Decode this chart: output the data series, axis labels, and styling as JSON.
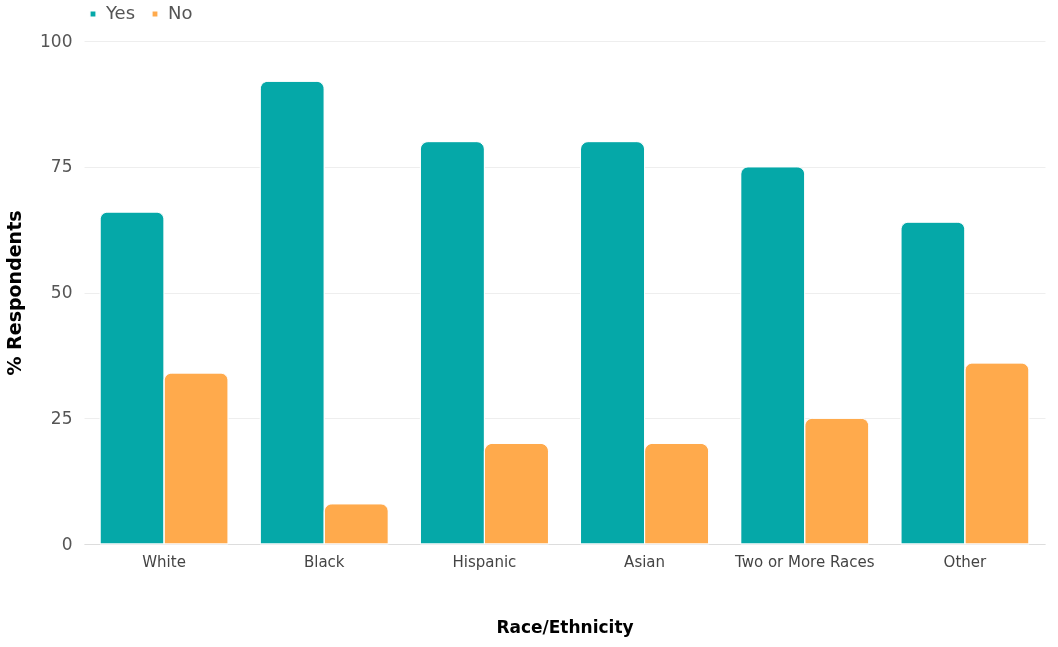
{
  "chart_data": {
    "type": "bar",
    "xlabel": "Race/Ethnicity",
    "ylabel": "% Respondents",
    "categories": [
      "White",
      "Black",
      "Hispanic",
      "Asian",
      "Two or More Races",
      "Other"
    ],
    "series": [
      {
        "name": "Yes",
        "color": "#05a8a8",
        "values": [
          66,
          92,
          80,
          80,
          75,
          64
        ]
      },
      {
        "name": "No",
        "color": "#ffaa4c",
        "values": [
          34,
          8,
          20,
          20,
          25,
          36
        ]
      }
    ],
    "ylim": [
      0,
      100
    ],
    "yticks": [
      0,
      25,
      50,
      75,
      100
    ],
    "grid": "y",
    "legend": "top"
  }
}
